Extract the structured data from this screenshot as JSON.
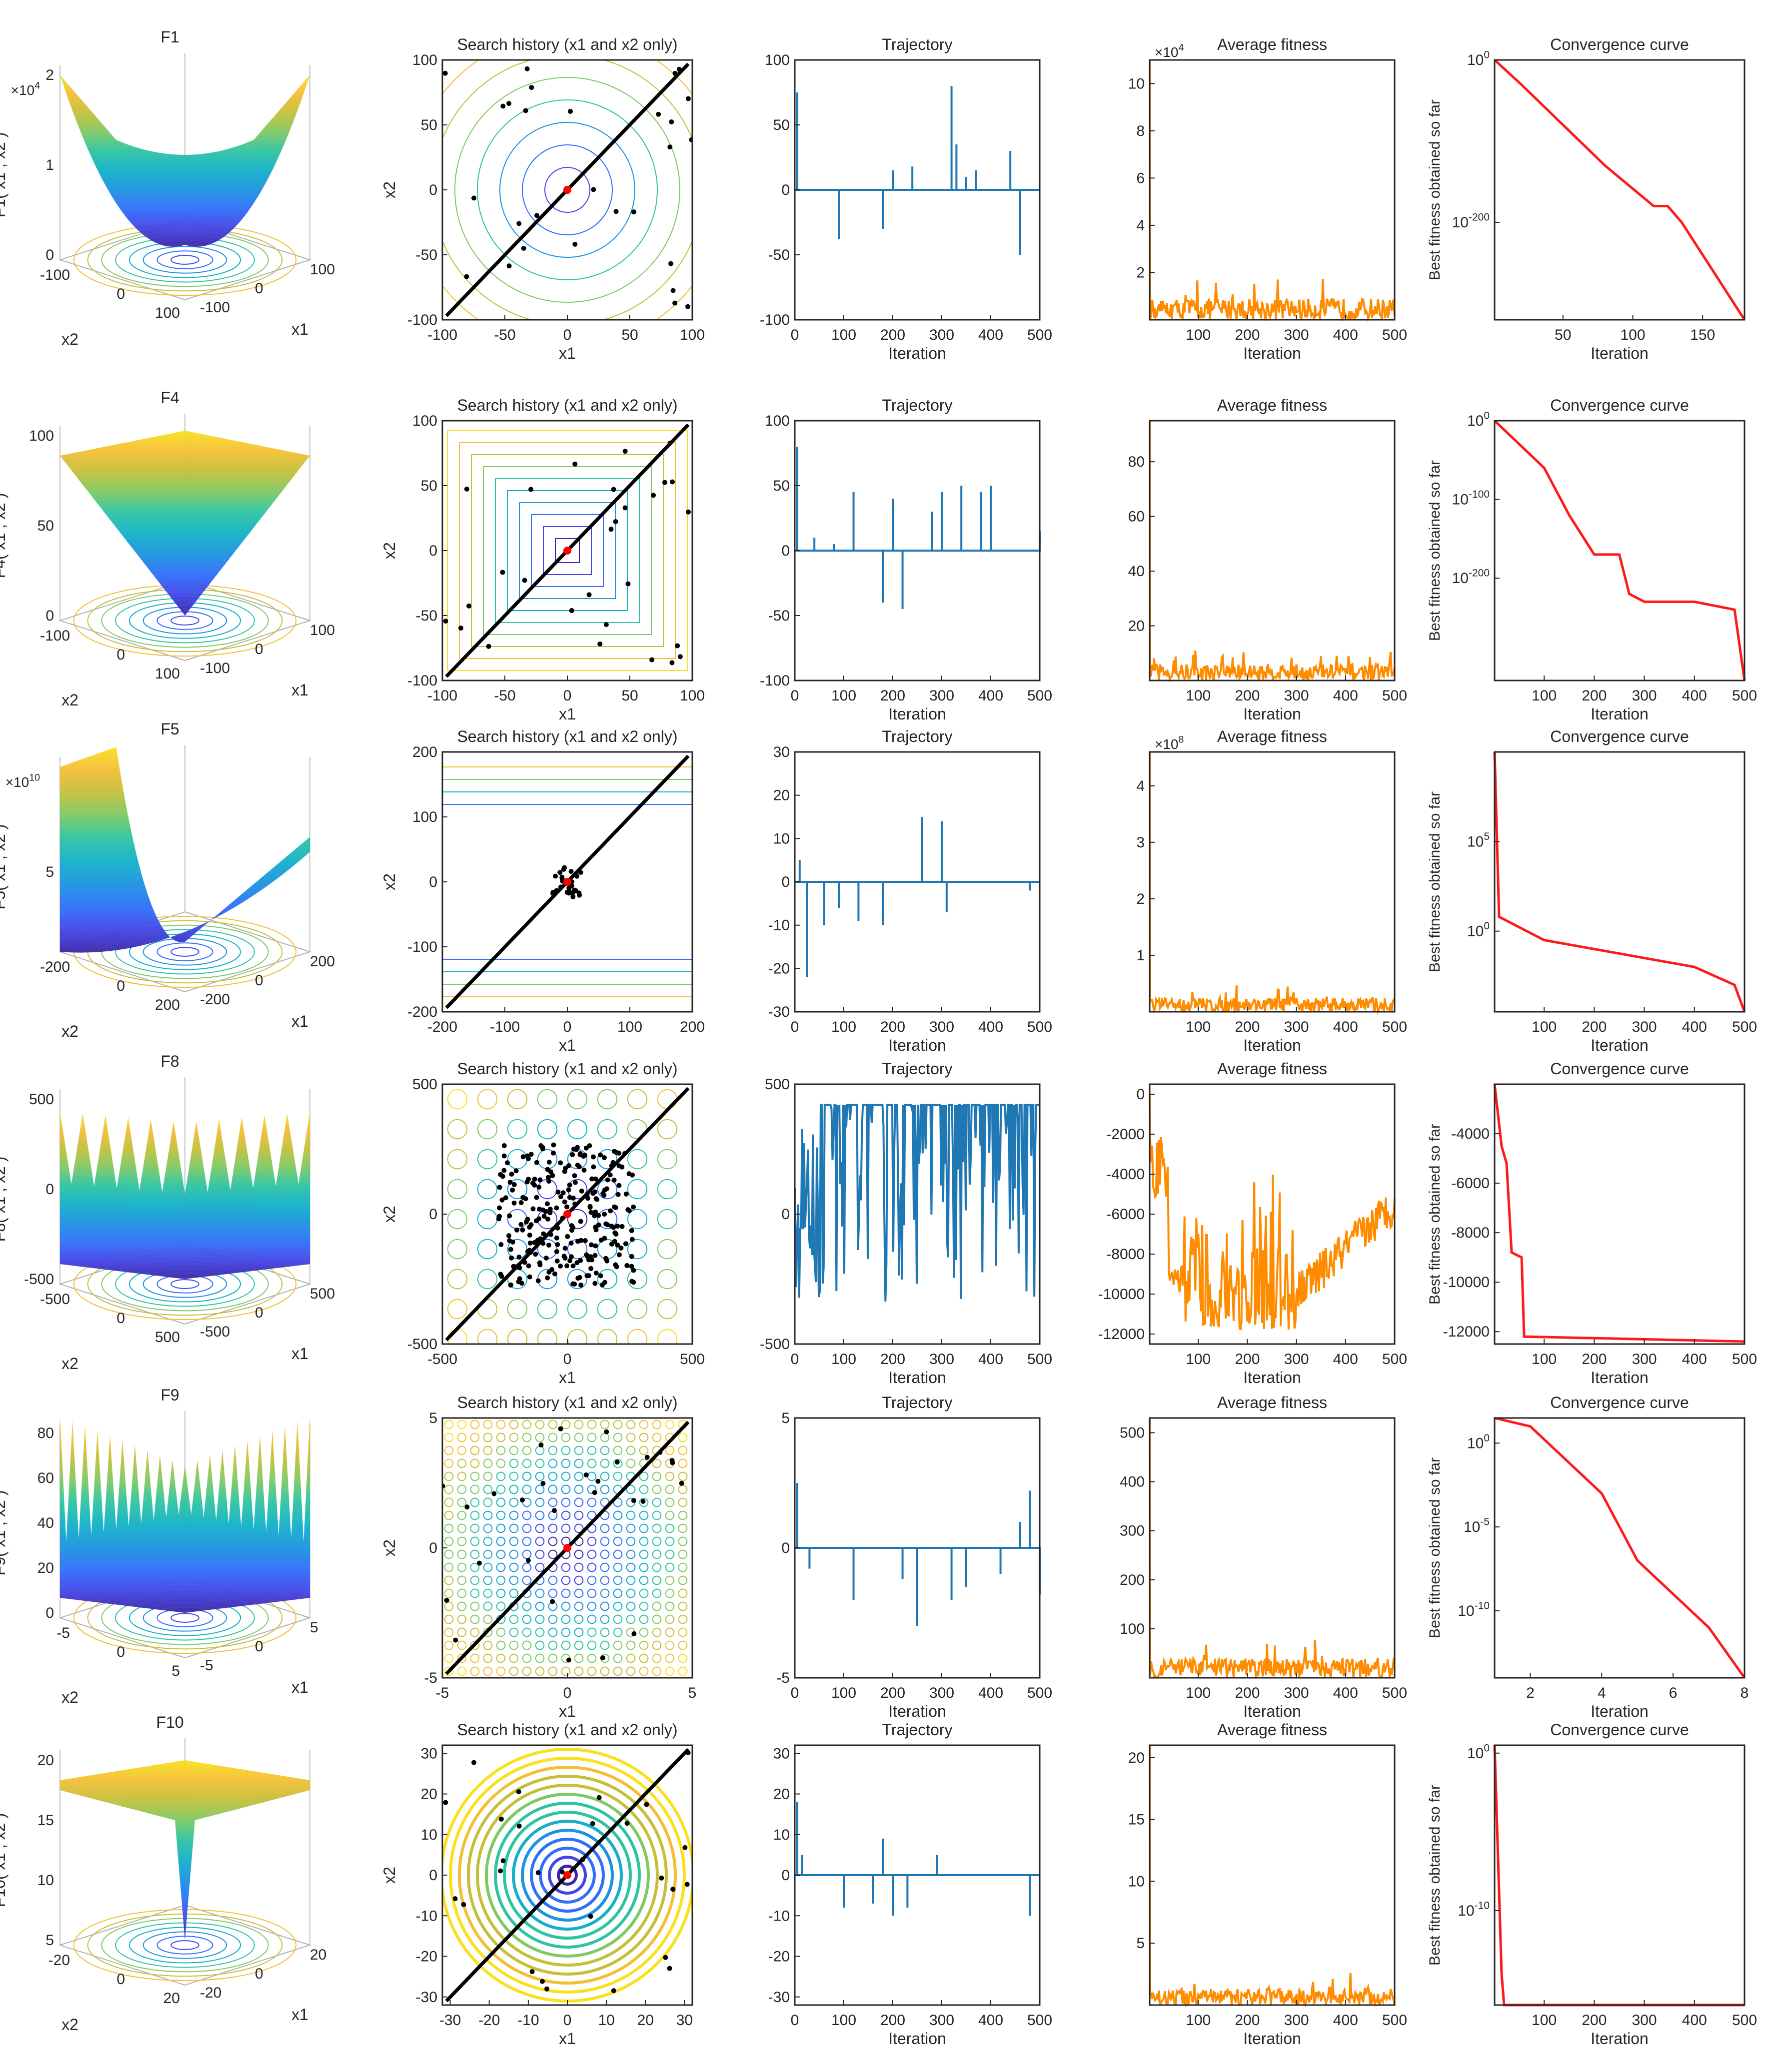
{
  "figure": {
    "column_titles": [
      "Search history (x1 and x2 only)",
      "Trajectory",
      "Average fitness",
      "Convergence curve"
    ],
    "colors": {
      "trajectory": "#1f77b4",
      "average": "#ff8c00",
      "convergence": "#ff1a1a",
      "axes": "#262626"
    },
    "labels": {
      "iteration": "Iteration",
      "x1": "x1",
      "x2": "x2",
      "best": "Best fitness obtained so far"
    }
  },
  "chart_data": [
    {
      "func": "F1",
      "type": "surface",
      "zlabel": "F1( x1 , x2 )",
      "zticks": [
        "0",
        "1",
        "2"
      ],
      "zexp": "×10^4",
      "xticks": [
        "-100",
        "0",
        "100"
      ],
      "yticks": [
        "-100",
        "0",
        "100"
      ],
      "shape": "bowl",
      "contour": {
        "range": [
          -100,
          100
        ],
        "ticks": [
          "-100",
          "-50",
          "0",
          "50",
          "100"
        ],
        "pattern": "circles"
      },
      "traj": {
        "range": [
          -100,
          100
        ],
        "ticks": [
          "-100",
          "-50",
          "0",
          "50",
          "100"
        ],
        "xmax": 500,
        "spikes": [
          [
            5,
            75
          ],
          [
            90,
            -38
          ],
          [
            180,
            -30
          ],
          [
            200,
            15
          ],
          [
            240,
            18
          ],
          [
            320,
            80
          ],
          [
            330,
            35
          ],
          [
            350,
            10
          ],
          [
            370,
            15
          ],
          [
            440,
            30
          ],
          [
            460,
            -50
          ]
        ]
      },
      "avg": {
        "yrange": [
          0,
          110000
        ],
        "yticks": [
          "2",
          "4",
          "6",
          "8",
          "10"
        ],
        "yexp": "×10^4",
        "xrange": [
          1,
          500
        ],
        "xticks": [
          "100",
          "200",
          "300",
          "400",
          "500"
        ],
        "start": 110000,
        "noise": 9000
      },
      "conv": {
        "type": "log",
        "xrange": [
          1,
          180
        ],
        "xticks": [
          "50",
          "100",
          "150"
        ],
        "yticks": [
          "10^0",
          "10^-200"
        ],
        "points": [
          [
            1,
            0
          ],
          [
            20,
            -30
          ],
          [
            50,
            -80
          ],
          [
            80,
            -130
          ],
          [
            115,
            -180
          ],
          [
            125,
            -180
          ],
          [
            135,
            -200
          ],
          [
            180,
            -320
          ]
        ]
      }
    },
    {
      "func": "F4",
      "type": "surface",
      "zlabel": "F4( x1 , x2 )",
      "zticks": [
        "0",
        "50",
        "100"
      ],
      "zexp": "",
      "xticks": [
        "-100",
        "0",
        "100"
      ],
      "yticks": [
        "-100",
        "0",
        "100"
      ],
      "shape": "pyramid",
      "contour": {
        "range": [
          -100,
          100
        ],
        "ticks": [
          "-100",
          "-50",
          "0",
          "50",
          "100"
        ],
        "pattern": "squares"
      },
      "traj": {
        "range": [
          -100,
          100
        ],
        "ticks": [
          "-100",
          "-50",
          "0",
          "50",
          "100"
        ],
        "xmax": 500,
        "spikes": [
          [
            5,
            80
          ],
          [
            40,
            10
          ],
          [
            80,
            5
          ],
          [
            120,
            45
          ],
          [
            180,
            -40
          ],
          [
            200,
            40
          ],
          [
            220,
            -45
          ],
          [
            280,
            30
          ],
          [
            300,
            45
          ],
          [
            340,
            50
          ],
          [
            380,
            45
          ],
          [
            400,
            50
          ],
          [
            500,
            15
          ]
        ]
      },
      "avg": {
        "yrange": [
          0,
          95
        ],
        "yticks": [
          "20",
          "40",
          "60",
          "80"
        ],
        "yexp": "",
        "xrange": [
          1,
          500
        ],
        "xticks": [
          "100",
          "200",
          "300",
          "400",
          "500"
        ],
        "start": 95,
        "noise": 6
      },
      "conv": {
        "type": "log",
        "xrange": [
          1,
          500
        ],
        "xticks": [
          "100",
          "200",
          "300",
          "400",
          "500"
        ],
        "yticks": [
          "10^0",
          "10^-100",
          "10^-200"
        ],
        "points": [
          [
            1,
            0
          ],
          [
            100,
            -60
          ],
          [
            150,
            -120
          ],
          [
            200,
            -170
          ],
          [
            250,
            -170
          ],
          [
            270,
            -220
          ],
          [
            300,
            -230
          ],
          [
            400,
            -230
          ],
          [
            480,
            -240
          ],
          [
            500,
            -330
          ]
        ]
      }
    },
    {
      "func": "F5",
      "type": "surface",
      "zlabel": "F5( x1 , x2 )",
      "zticks": [
        "5"
      ],
      "zexp": "×10^10",
      "xticks": [
        "-200",
        "0",
        "200"
      ],
      "yticks": [
        "-200",
        "0",
        "200"
      ],
      "shape": "valley",
      "contour": {
        "range": [
          -200,
          200
        ],
        "ticks": [
          "-200",
          "-100",
          "0",
          "100",
          "200"
        ],
        "pattern": "hlines"
      },
      "traj": {
        "range": [
          -30,
          30
        ],
        "ticks": [
          "-30",
          "-20",
          "-10",
          "0",
          "10",
          "20",
          "30"
        ],
        "xmax": 500,
        "spikes": [
          [
            10,
            5
          ],
          [
            25,
            -22
          ],
          [
            60,
            -10
          ],
          [
            90,
            -6
          ],
          [
            130,
            -9
          ],
          [
            180,
            -10
          ],
          [
            260,
            15
          ],
          [
            300,
            14
          ],
          [
            310,
            -7
          ],
          [
            480,
            -2
          ]
        ]
      },
      "avg": {
        "yrange": [
          0,
          460000000
        ],
        "yticks": [
          "1",
          "2",
          "3",
          "4"
        ],
        "yexp": "×10^8",
        "xrange": [
          1,
          500
        ],
        "xticks": [
          "100",
          "200",
          "300",
          "400",
          "500"
        ],
        "start": 460000000,
        "noise": 25000000
      },
      "conv": {
        "type": "log",
        "xrange": [
          1,
          500
        ],
        "xticks": [
          "100",
          "200",
          "300",
          "400",
          "500"
        ],
        "yticks": [
          "10^5",
          "10^0"
        ],
        "points": [
          [
            1,
            10
          ],
          [
            10,
            0.8
          ],
          [
            100,
            -0.5
          ],
          [
            200,
            -1
          ],
          [
            300,
            -1.5
          ],
          [
            400,
            -2
          ],
          [
            480,
            -3
          ],
          [
            500,
            -4.5
          ]
        ]
      }
    },
    {
      "func": "F8",
      "type": "surface",
      "zlabel": "F8( x1 , x2 )",
      "zticks": [
        "-500",
        "0",
        "500"
      ],
      "zexp": "",
      "xticks": [
        "-500",
        "0",
        "500"
      ],
      "yticks": [
        "-500",
        "0",
        "500"
      ],
      "shape": "wavy",
      "contour": {
        "range": [
          -500,
          500
        ],
        "ticks": [
          "-500",
          "0",
          "500"
        ],
        "pattern": "blobs"
      },
      "traj": {
        "range": [
          -500,
          500
        ],
        "ticks": [
          "-500",
          "0",
          "500"
        ],
        "xmax": 500,
        "spikes": []
      },
      "avg": {
        "yrange": [
          -12500,
          500
        ],
        "yticks": [
          "-12000",
          "-10000",
          "-8000",
          "-6000",
          "-4000",
          "-2000",
          "0"
        ],
        "yexp": "",
        "xrange": [
          1,
          500
        ],
        "xticks": [
          "100",
          "200",
          "300",
          "400",
          "500"
        ],
        "start": 0,
        "noise": 0
      },
      "conv": {
        "type": "linear",
        "xrange": [
          1,
          500
        ],
        "xticks": [
          "100",
          "200",
          "300",
          "400",
          "500"
        ],
        "yrange": [
          -12500,
          -2000
        ],
        "yticks": [
          "-12000",
          "-10000",
          "-8000",
          "-6000",
          "-4000"
        ],
        "points": [
          [
            1,
            -2000
          ],
          [
            15,
            -4500
          ],
          [
            25,
            -5200
          ],
          [
            35,
            -8800
          ],
          [
            55,
            -9000
          ],
          [
            60,
            -12200
          ],
          [
            500,
            -12400
          ]
        ]
      }
    },
    {
      "func": "F9",
      "type": "surface",
      "zlabel": "F9( x1 , x2 )",
      "zticks": [
        "0",
        "20",
        "40",
        "60",
        "80"
      ],
      "zexp": "",
      "xticks": [
        "-5",
        "0",
        "5"
      ],
      "yticks": [
        "-5",
        "0",
        "5"
      ],
      "shape": "egg",
      "contour": {
        "range": [
          -5,
          5
        ],
        "ticks": [
          "-5",
          "0",
          "5"
        ],
        "pattern": "grid"
      },
      "traj": {
        "range": [
          -5,
          5
        ],
        "ticks": [
          "-5",
          "0",
          "5"
        ],
        "xmax": 500,
        "spikes": [
          [
            5,
            2.5
          ],
          [
            30,
            -0.8
          ],
          [
            120,
            -2
          ],
          [
            220,
            -1.2
          ],
          [
            250,
            -3
          ],
          [
            320,
            -2
          ],
          [
            350,
            -1.5
          ],
          [
            420,
            -1
          ],
          [
            460,
            1
          ],
          [
            480,
            2.2
          ],
          [
            500,
            -1.8
          ]
        ]
      },
      "avg": {
        "yrange": [
          0,
          530
        ],
        "yticks": [
          "100",
          "200",
          "300",
          "400",
          "500"
        ],
        "yexp": "",
        "xrange": [
          1,
          500
        ],
        "xticks": [
          "100",
          "200",
          "300",
          "400",
          "500"
        ],
        "start": 530,
        "noise": 40
      },
      "conv": {
        "type": "log",
        "xrange": [
          1,
          8
        ],
        "xticks": [
          "2",
          "4",
          "6",
          "8"
        ],
        "yticks": [
          "10^0",
          "10^-5",
          "10^-10"
        ],
        "points": [
          [
            1,
            1.5
          ],
          [
            2,
            1
          ],
          [
            3,
            -1
          ],
          [
            4,
            -3
          ],
          [
            5,
            -7
          ],
          [
            6,
            -9
          ],
          [
            7,
            -11
          ],
          [
            8,
            -14
          ]
        ]
      }
    },
    {
      "func": "F10",
      "type": "surface",
      "zlabel": "F10( x1 , x2 )",
      "zticks": [
        "5",
        "10",
        "15",
        "20"
      ],
      "zexp": "",
      "xticks": [
        "-20",
        "0",
        "20"
      ],
      "yticks": [
        "-20",
        "0",
        "20"
      ],
      "shape": "funnel",
      "contour": {
        "range": [
          -32,
          32
        ],
        "ticks": [
          "-30",
          "-20",
          "-10",
          "0",
          "10",
          "20",
          "30"
        ],
        "pattern": "rings"
      },
      "traj": {
        "range": [
          -32,
          32
        ],
        "ticks": [
          "-30",
          "-20",
          "-10",
          "0",
          "10",
          "20",
          "30"
        ],
        "xmax": 500,
        "spikes": [
          [
            5,
            18
          ],
          [
            15,
            5
          ],
          [
            100,
            -8
          ],
          [
            160,
            -7
          ],
          [
            180,
            9
          ],
          [
            200,
            -10
          ],
          [
            230,
            -8
          ],
          [
            290,
            5
          ],
          [
            480,
            -10
          ]
        ]
      },
      "avg": {
        "yrange": [
          0,
          21
        ],
        "yticks": [
          "5",
          "10",
          "15",
          "20"
        ],
        "yexp": "",
        "xrange": [
          1,
          500
        ],
        "xticks": [
          "100",
          "200",
          "300",
          "400",
          "500"
        ],
        "start": 21,
        "noise": 1.3
      },
      "conv": {
        "type": "log",
        "xrange": [
          1,
          500
        ],
        "xticks": [
          "100",
          "200",
          "300",
          "400",
          "500"
        ],
        "yticks": [
          "10^0",
          "10^-10"
        ],
        "points": [
          [
            1,
            0.5
          ],
          [
            15,
            -14
          ],
          [
            20,
            -16
          ],
          [
            500,
            -16
          ]
        ]
      }
    }
  ]
}
